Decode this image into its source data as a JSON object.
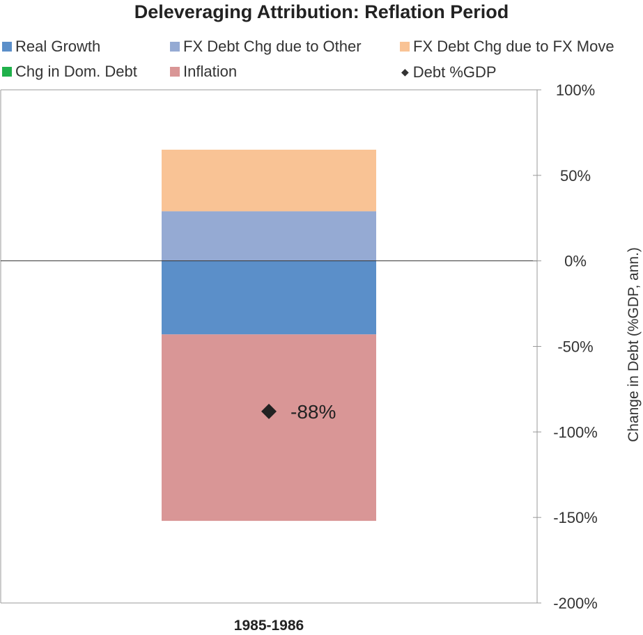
{
  "chart_data": {
    "type": "bar",
    "stacked": true,
    "title": "Deleveraging Attribution: Reflation Period",
    "categories": [
      "1985-1986"
    ],
    "ylabel": "Change in Debt (%GDP, ann.)",
    "ylim": [
      -200,
      100
    ],
    "yticks": [
      100,
      50,
      0,
      -50,
      -100,
      -150,
      -200
    ],
    "ytick_labels": [
      "100%",
      "50%",
      "0%",
      "-50%",
      "-100%",
      "-150%",
      "-200%"
    ],
    "y_axis_side": "right",
    "series": [
      {
        "name": "Real Growth",
        "color": "#5b8fc9",
        "values": [
          -43
        ]
      },
      {
        "name": "FX Debt Chg due to Other",
        "color": "#95aad3",
        "values": [
          29
        ]
      },
      {
        "name": "FX Debt Chg due to FX Move",
        "color": "#f9c395",
        "values": [
          36
        ]
      },
      {
        "name": "Chg in Dom. Debt",
        "color": "#20b14b",
        "values": [
          0
        ]
      },
      {
        "name": "Inflation",
        "color": "#d99696",
        "values": [
          -109
        ]
      }
    ],
    "point_series": {
      "name": "Debt %GDP",
      "marker": "diamond",
      "color": "#222222",
      "values": [
        -88
      ]
    },
    "data_labels": [
      "-88%"
    ],
    "legend_placement": "top",
    "grid": false
  },
  "legend": [
    {
      "label": "Real Growth",
      "color": "#5b8fc9",
      "marker": "square"
    },
    {
      "label": "FX Debt Chg due to Other",
      "color": "#95aad3",
      "marker": "square"
    },
    {
      "label": "FX Debt Chg due to FX Move",
      "color": "#f9c395",
      "marker": "square"
    },
    {
      "label": "Chg in Dom. Debt",
      "color": "#20b14b",
      "marker": "square"
    },
    {
      "label": "Inflation",
      "color": "#d99696",
      "marker": "square"
    },
    {
      "label": "Debt %GDP",
      "color": "#222222",
      "marker": "diamond"
    }
  ]
}
